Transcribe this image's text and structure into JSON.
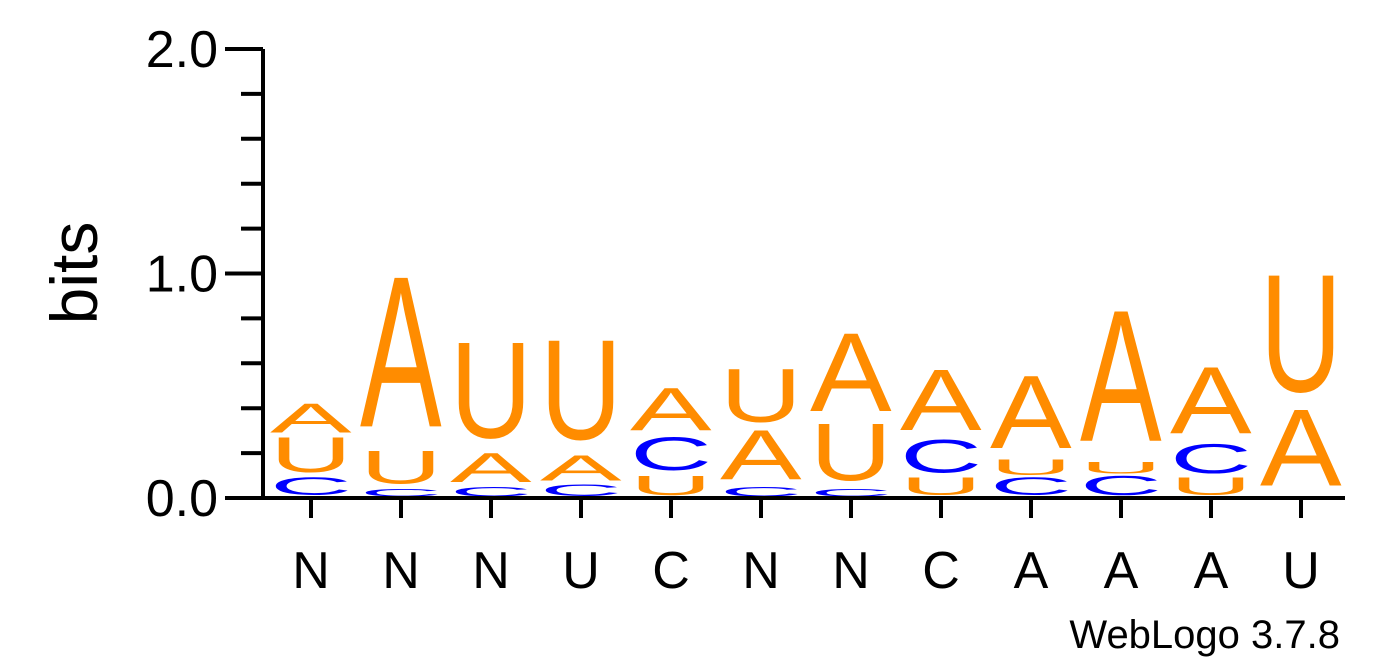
{
  "chart_data": {
    "type": "sequence-logo",
    "ylabel": "bits",
    "ylim": [
      0,
      2
    ],
    "yticks": [
      "0.0",
      "1.0",
      "2.0"
    ],
    "positions": [
      "N",
      "N",
      "N",
      "U",
      "C",
      "N",
      "N",
      "C",
      "A",
      "A",
      "A",
      "U"
    ],
    "colors": {
      "A": "#ff8c00",
      "U": "#ff8c00",
      "C": "#0000ff"
    },
    "stacks": [
      [
        {
          "letter": "C",
          "bits": 0.09
        },
        {
          "letter": "U",
          "bits": 0.18
        },
        {
          "letter": "A",
          "bits": 0.15
        }
      ],
      [
        {
          "letter": "C",
          "bits": 0.04
        },
        {
          "letter": "U",
          "bits": 0.17
        },
        {
          "letter": "A",
          "bits": 0.77
        }
      ],
      [
        {
          "letter": "C",
          "bits": 0.05
        },
        {
          "letter": "A",
          "bits": 0.15
        },
        {
          "letter": "U",
          "bits": 0.49
        }
      ],
      [
        {
          "letter": "C",
          "bits": 0.06
        },
        {
          "letter": "A",
          "bits": 0.13
        },
        {
          "letter": "U",
          "bits": 0.51
        }
      ],
      [
        {
          "letter": "U",
          "bits": 0.1
        },
        {
          "letter": "C",
          "bits": 0.17
        },
        {
          "letter": "A",
          "bits": 0.22
        }
      ],
      [
        {
          "letter": "C",
          "bits": 0.05
        },
        {
          "letter": "A",
          "bits": 0.25
        },
        {
          "letter": "U",
          "bits": 0.27
        }
      ],
      [
        {
          "letter": "C",
          "bits": 0.04
        },
        {
          "letter": "U",
          "bits": 0.29
        },
        {
          "letter": "A",
          "bits": 0.4
        }
      ],
      [
        {
          "letter": "U",
          "bits": 0.09
        },
        {
          "letter": "C",
          "bits": 0.17
        },
        {
          "letter": "A",
          "bits": 0.31
        }
      ],
      [
        {
          "letter": "C",
          "bits": 0.09
        },
        {
          "letter": "U",
          "bits": 0.08
        },
        {
          "letter": "A",
          "bits": 0.37
        }
      ],
      [
        {
          "letter": "C",
          "bits": 0.1
        },
        {
          "letter": "U",
          "bits": 0.06
        },
        {
          "letter": "A",
          "bits": 0.67
        }
      ],
      [
        {
          "letter": "U",
          "bits": 0.09
        },
        {
          "letter": "C",
          "bits": 0.15
        },
        {
          "letter": "A",
          "bits": 0.34
        }
      ],
      [
        {
          "letter": "A",
          "bits": 0.39
        },
        {
          "letter": "U",
          "bits": 0.6
        }
      ]
    ]
  },
  "credit": "WebLogo 3.7.8"
}
